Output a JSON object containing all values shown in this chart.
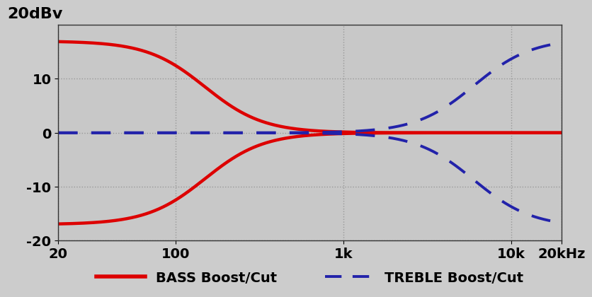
{
  "title": "20dBv",
  "bg_color": "#cccccc",
  "plot_bg_color": "#c8c8c8",
  "bass_color": "#dd0000",
  "treble_color": "#2222aa",
  "freq_min": 20,
  "freq_max": 20000,
  "ylim": [
    -20,
    20
  ],
  "yticks": [
    -20,
    -10,
    0,
    10
  ],
  "xtick_positions": [
    20,
    100,
    1000,
    10000,
    20000
  ],
  "xtick_labels": [
    "20",
    "100",
    "1k",
    "10k",
    "20kHz"
  ],
  "grid_color": "#999999",
  "legend_bass": "BASS Boost/Cut",
  "legend_treble": "TREBLE Boost/Cut",
  "bass_max_db": 17.0,
  "treble_max_db": 17.5,
  "bass_fc": 150,
  "treble_fc": 6000,
  "bass_order": 2.5,
  "treble_order": 2.5,
  "lw_bass": 3.2,
  "lw_treble": 2.8,
  "tick_fontsize": 14,
  "legend_fontsize": 14
}
